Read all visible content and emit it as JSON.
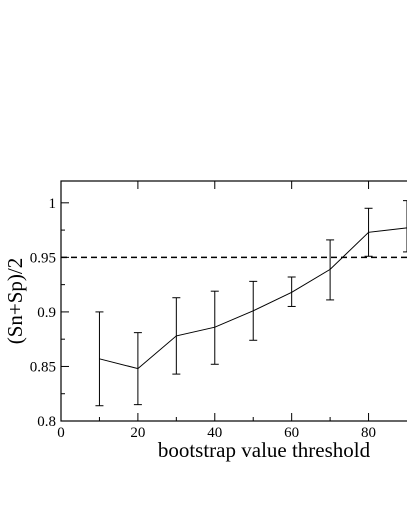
{
  "chart_data": {
    "type": "line",
    "title": "",
    "xlabel": "bootstrap value threshold",
    "ylabel": "(Sn+Sp)/2",
    "xlim": [
      0,
      90
    ],
    "ylim": [
      0.8,
      1.02
    ],
    "x_ticks": [
      0,
      20,
      40,
      60,
      80
    ],
    "y_ticks": [
      0.8,
      0.85,
      0.9,
      0.95,
      1
    ],
    "x_tick_labels": [
      "0",
      "20",
      "40",
      "60",
      "80"
    ],
    "y_tick_labels": [
      "0.8",
      "0.85",
      "0.9",
      "0.95",
      "1"
    ],
    "grid": false,
    "reference_line": {
      "y": 0.95,
      "style": "dashed"
    },
    "series": [
      {
        "x": [
          10,
          20,
          30,
          40,
          50,
          60,
          70,
          80,
          90
        ],
        "values": [
          0.857,
          0.848,
          0.878,
          0.886,
          0.901,
          0.918,
          0.939,
          0.973,
          0.977
        ],
        "err_low": [
          0.814,
          0.815,
          0.843,
          0.852,
          0.874,
          0.905,
          0.911,
          0.951,
          0.955
        ],
        "err_high": [
          0.9,
          0.881,
          0.913,
          0.919,
          0.928,
          0.932,
          0.966,
          0.995,
          1.002
        ]
      }
    ]
  }
}
